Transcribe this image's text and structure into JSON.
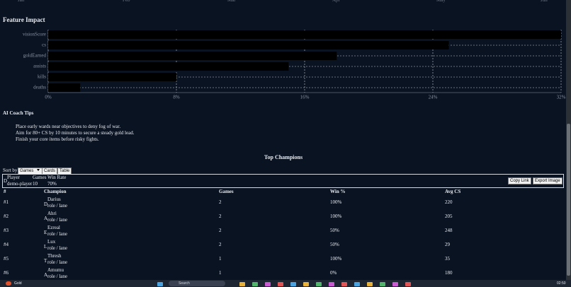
{
  "top_axis": {
    "labels": [
      "Jan",
      "Feb",
      "Mar",
      "Apr",
      "May",
      "Jun"
    ]
  },
  "chart_data": {
    "type": "bar",
    "orientation": "horizontal",
    "title": "Feature Impact",
    "categories": [
      "visionScore",
      "cs",
      "goldEarned",
      "assists",
      "kills",
      "deaths"
    ],
    "values": [
      32,
      25,
      18,
      15,
      8,
      2
    ],
    "color": "#000000",
    "xlim": [
      0,
      32
    ],
    "xticks": [
      {
        "value": 0,
        "label": "0%"
      },
      {
        "value": 8,
        "label": "8%"
      },
      {
        "value": 16,
        "label": "16%"
      },
      {
        "value": 24,
        "label": "24%"
      },
      {
        "value": 32,
        "label": "32%"
      }
    ],
    "grid": true
  },
  "tips": {
    "title": "AI Coach Tips",
    "items": [
      "Place early wards near objectives to deny fog of war.",
      "Aim for 80+ CS by 10 minutes to secure a steady gold lead.",
      "Finish your core items before risky fights."
    ]
  },
  "champions": {
    "title": "Top Champions",
    "controls": {
      "sort_label": "Sort by",
      "sort_value": "Games",
      "buttons": [
        "Cards",
        "Table"
      ]
    },
    "player": {
      "avatar": "D",
      "headers": [
        "Player",
        "Games",
        "Win Rate"
      ],
      "values": [
        "demo-player",
        "10",
        "70%"
      ],
      "buttons": [
        "Copy Link",
        "Export Image"
      ]
    },
    "table": {
      "headers": [
        "#",
        "Champion",
        "Games",
        "Win %",
        "Avg CS"
      ],
      "rows": [
        {
          "rank": "#1",
          "initial": "D",
          "name": "Darius",
          "role": "role / lane",
          "games": "2",
          "win": "100%",
          "cs": "220"
        },
        {
          "rank": "#2",
          "initial": "A",
          "name": "Ahri",
          "role": "role / lane",
          "games": "2",
          "win": "100%",
          "cs": "205"
        },
        {
          "rank": "#3",
          "initial": "E",
          "name": "Ezreal",
          "role": "role / lane",
          "games": "2",
          "win": "50%",
          "cs": "248"
        },
        {
          "rank": "#4",
          "initial": "L",
          "name": "Lux",
          "role": "role / lane",
          "games": "2",
          "win": "50%",
          "cs": "29"
        },
        {
          "rank": "#5",
          "initial": "T",
          "name": "Thresh",
          "role": "role / lane",
          "games": "1",
          "win": "100%",
          "cs": "35"
        },
        {
          "rank": "#6",
          "initial": "A",
          "name": "Amumu",
          "role": "role / lane",
          "games": "1",
          "win": "0%",
          "cs": "180"
        }
      ]
    }
  },
  "taskbar": {
    "app": "Gold",
    "search": "Search",
    "time": "02:50"
  }
}
